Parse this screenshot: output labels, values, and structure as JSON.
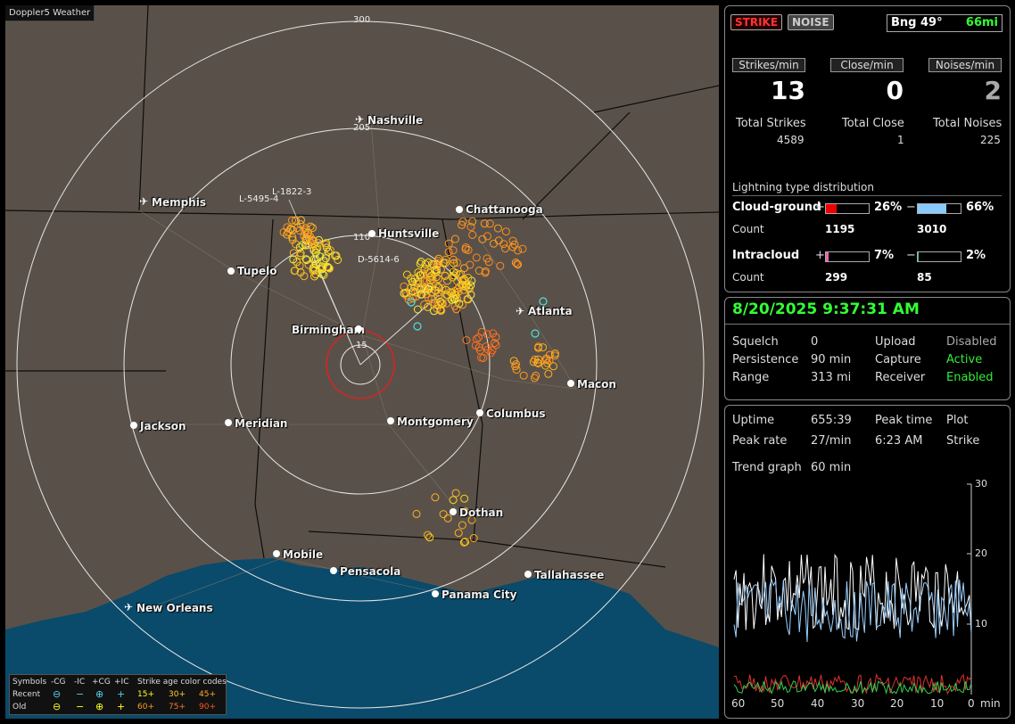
{
  "app": {
    "title": "Doppler5 Weather"
  },
  "map": {
    "range_labels": [
      "300",
      "205",
      "110",
      "15"
    ],
    "cities": [
      {
        "name": "Nashville",
        "icon": "airport-icon"
      },
      {
        "name": "Memphis",
        "icon": "airport-icon"
      },
      {
        "name": "Chattanooga",
        "icon": "city-dot"
      },
      {
        "name": "Huntsville",
        "icon": "city-dot"
      },
      {
        "name": "Tupelo",
        "icon": "city-dot"
      },
      {
        "name": "Atlanta",
        "icon": "airport-icon"
      },
      {
        "name": "Birmingham",
        "icon": "city-dot"
      },
      {
        "name": "Macon",
        "icon": "city-dot"
      },
      {
        "name": "Jackson",
        "icon": "city-dot"
      },
      {
        "name": "Meridian",
        "icon": "city-dot"
      },
      {
        "name": "Montgomery",
        "icon": "city-dot"
      },
      {
        "name": "Columbus",
        "icon": "city-dot"
      },
      {
        "name": "Dothan",
        "icon": "city-dot"
      },
      {
        "name": "Mobile",
        "icon": "city-dot"
      },
      {
        "name": "Pensacola",
        "icon": "city-dot"
      },
      {
        "name": "Tallahassee",
        "icon": "city-dot"
      },
      {
        "name": "Panama City",
        "icon": "city-dot"
      },
      {
        "name": "New Orleans",
        "icon": "airport-icon"
      }
    ],
    "strike_labels": [
      "L-1822-3",
      "L-5495-4",
      "D-5614-6"
    ],
    "legend": {
      "symbols_label": "Symbols",
      "neg_cg": "-CG",
      "neg_ic": "-IC",
      "pos_cg": "+CG",
      "pos_ic": "+IC",
      "age_label": "Strike age color codes",
      "recent": "Recent",
      "old": "Old",
      "recent_ages": [
        "15+",
        "30+",
        "45+"
      ],
      "old_ages": [
        "60+",
        "75+",
        "90+"
      ]
    },
    "colors": {
      "land": "#595149",
      "water": "#0a4a6a",
      "rings": "#e6e6e6"
    }
  },
  "stats": {
    "strike_btn": "STRIKE",
    "noise_btn": "NOISE",
    "bearing_label": "Bng 49°",
    "bearing_dist": "66mi",
    "strikes_min_label": "Strikes/min",
    "close_min_label": "Close/min",
    "noises_min_label": "Noises/min",
    "strikes_min": "13",
    "close_min": "0",
    "noises_min": "2",
    "total_strikes_label": "Total Strikes",
    "total_close_label": "Total Close",
    "total_noises_label": "Total Noises",
    "total_strikes": "4589",
    "total_close": "1",
    "total_noises": "225",
    "dist_title": "Lightning type distribution",
    "cg_label": "Cloud-ground",
    "ic_label": "Intracloud",
    "count_label": "Count",
    "plus": "+",
    "minus": "−",
    "cg_pos_pct": "26%",
    "cg_neg_pct": "66%",
    "ic_pos_pct": "7%",
    "ic_neg_pct": "2%",
    "cg_pos_count": "1195",
    "cg_neg_count": "3010",
    "ic_pos_count": "299",
    "ic_neg_count": "85",
    "cg_pos_frac": 0.26,
    "cg_neg_frac": 0.66,
    "ic_pos_frac": 0.07,
    "ic_neg_frac": 0.02
  },
  "status": {
    "datetime": "8/20/2025 9:37:31 AM",
    "squelch_label": "Squelch",
    "squelch": "0",
    "persistence_label": "Persistence",
    "persistence": "90 min",
    "range_label": "Range",
    "range": "313 mi",
    "upload_label": "Upload",
    "upload": "Disabled",
    "capture_label": "Capture",
    "capture": "Active",
    "receiver_label": "Receiver",
    "receiver": "Enabled"
  },
  "trend": {
    "uptime_label": "Uptime",
    "uptime": "655:39",
    "peak_time_label": "Peak time",
    "peak_time": "6:23 AM",
    "plot_label": "Plot",
    "plot": "Strike",
    "peak_rate_label": "Peak rate",
    "peak_rate": "27/min",
    "trend_label": "Trend graph",
    "trend_window": "60 min",
    "y_ticks": [
      "30",
      "20",
      "10"
    ],
    "x_ticks": [
      "60",
      "50",
      "40",
      "30",
      "20",
      "10",
      "0"
    ],
    "x_unit": "min"
  }
}
